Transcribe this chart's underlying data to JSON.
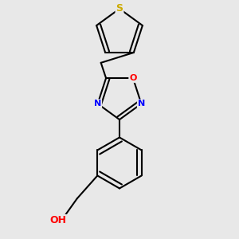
{
  "background_color": "#e8e8e8",
  "bond_color": "#000000",
  "bond_width": 1.5,
  "atom_colors": {
    "S": "#ccaa00",
    "O": "#ff0000",
    "N": "#0000ff",
    "OH": "#ff0000"
  },
  "font_size": 8,
  "figsize": [
    3.0,
    3.0
  ],
  "dpi": 100
}
